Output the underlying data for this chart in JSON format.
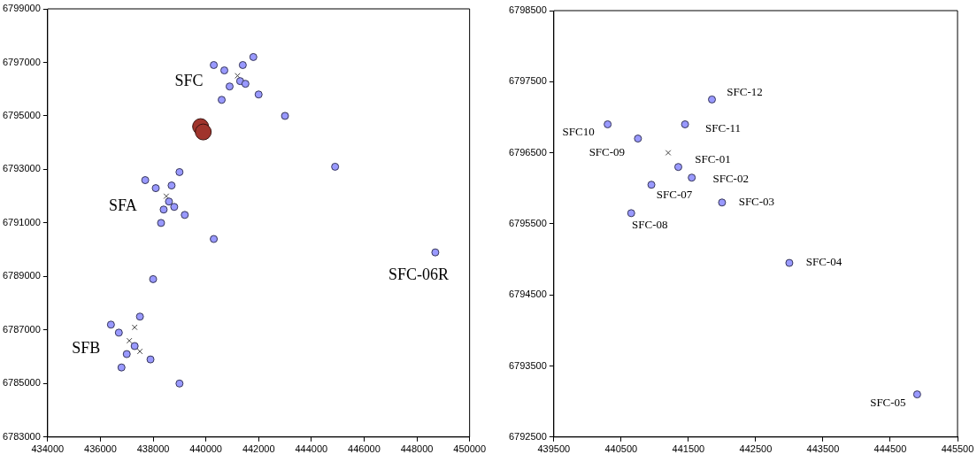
{
  "chart_data": [
    {
      "type": "scatter",
      "xlim": [
        434000,
        450000
      ],
      "ylim": [
        6783000,
        6799000
      ],
      "xticks": [
        434000,
        436000,
        438000,
        440000,
        442000,
        444000,
        446000,
        448000,
        450000
      ],
      "yticks": [
        6783000,
        6785000,
        6787000,
        6789000,
        6791000,
        6793000,
        6795000,
        6797000,
        6799000
      ],
      "grid": false,
      "legend": false,
      "series": [
        {
          "color": "#9999ff",
          "marker": "circle",
          "x": [
            440300,
            440700,
            441400,
            441800,
            441300,
            441500,
            440900,
            442000,
            440600,
            443000,
            444900,
            437700,
            438100,
            439000,
            438700,
            438600,
            438800,
            438400,
            439200,
            438300,
            440300,
            448700,
            438000,
            437500,
            436400,
            436700,
            437300,
            437000,
            437900,
            436800,
            439000
          ],
          "values": [
            6796900,
            6796700,
            6796900,
            6797200,
            6796300,
            6796200,
            6796100,
            6795800,
            6795600,
            6795000,
            6793100,
            6792600,
            6792300,
            6792900,
            6792400,
            6791800,
            6791600,
            6791500,
            6791300,
            6791000,
            6790400,
            6789900,
            6788900,
            6787500,
            6787200,
            6786900,
            6786400,
            6786100,
            6785900,
            6785600,
            6785000
          ]
        },
        {
          "type": "bubble",
          "color": "#a0342c",
          "x": [
            439800,
            439900
          ],
          "values": [
            6794600,
            6794400
          ],
          "sizes": [
            1,
            1
          ]
        },
        {
          "color": "#444444",
          "marker": "cross",
          "x": [
            441200,
            438500,
            437300,
            437100,
            437500
          ],
          "values": [
            6796500,
            6792000,
            6787100,
            6786600,
            6786200
          ]
        }
      ],
      "annotations": [
        {
          "text": "SFC",
          "x": 441200,
          "y": 6796500
        },
        {
          "text": "SFA",
          "x": 438500,
          "y": 6792000
        },
        {
          "text": "SFB",
          "x": 437100,
          "y": 6786600
        },
        {
          "text": "SFC-06R",
          "x": 448700,
          "y": 6789900
        }
      ]
    },
    {
      "type": "scatter",
      "xlim": [
        439500,
        445500
      ],
      "ylim": [
        6792500,
        6798500
      ],
      "xticks": [
        439500,
        440500,
        441500,
        442500,
        443500,
        444500,
        445500
      ],
      "yticks": [
        6792500,
        6793500,
        6794500,
        6795500,
        6796500,
        6797500,
        6798500
      ],
      "grid": false,
      "legend": false,
      "series": [
        {
          "color": "#9999ff",
          "marker": "circle",
          "x": [
            441850,
            440300,
            441450,
            440750,
            441350,
            441550,
            440950,
            442000,
            440650,
            443000,
            444900
          ],
          "values": [
            6797250,
            6796900,
            6796900,
            6796700,
            6796300,
            6796150,
            6796050,
            6795800,
            6795650,
            6794950,
            6793100
          ]
        },
        {
          "color": "#444444",
          "marker": "cross",
          "x": [
            441200
          ],
          "values": [
            6796500
          ]
        }
      ],
      "annotations": [
        {
          "text": "SFC-12",
          "x": 441850,
          "y": 6797250
        },
        {
          "text": "SFC10",
          "x": 440300,
          "y": 6796900
        },
        {
          "text": "SFC-11",
          "x": 441450,
          "y": 6796900
        },
        {
          "text": "SFC-09",
          "x": 440750,
          "y": 6796700
        },
        {
          "text": "SFC-01",
          "x": 441350,
          "y": 6796300
        },
        {
          "text": "SFC-02",
          "x": 441550,
          "y": 6796150
        },
        {
          "text": "SFC-07",
          "x": 440950,
          "y": 6796050
        },
        {
          "text": "SFC-03",
          "x": 442000,
          "y": 6795800
        },
        {
          "text": "SFC-08",
          "x": 440650,
          "y": 6795650
        },
        {
          "text": "SFC-04",
          "x": 443000,
          "y": 6794950
        },
        {
          "text": "SFC-05",
          "x": 444900,
          "y": 6793100
        }
      ]
    }
  ]
}
